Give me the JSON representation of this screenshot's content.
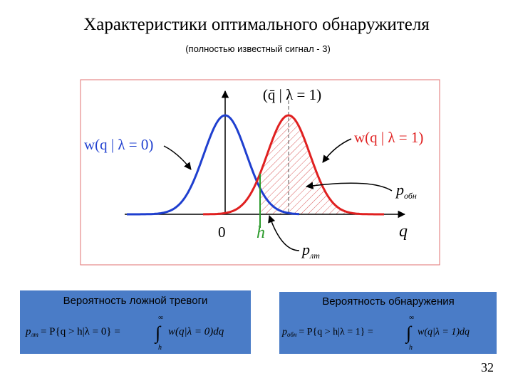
{
  "title": "Характеристики оптимального обнаружителя",
  "subtitle": "(полностью известный сигнал - 3)",
  "plot": {
    "mean_label": "(q̄ | λ = 1)",
    "curve0_label": "w(q | λ = 0)",
    "curve1_label": "w(q | λ = 1)",
    "p_det": {
      "main": "p",
      "sub": "обн"
    },
    "origin": "0",
    "threshold": "h",
    "axis": "q",
    "p_fa": {
      "main": "p",
      "sub": "лт"
    }
  },
  "boxes": [
    {
      "title": "Вероятность ложной тревоги",
      "lhs": "p",
      "sub": "лт",
      "middle": "= P{q > h|λ = 0} =",
      "upper": "∞",
      "lower": "h",
      "integrand": "w(q|λ = 0)dq"
    },
    {
      "title": "Вероятность обнаружения",
      "lhs": "p",
      "sub": "обн",
      "middle": "= P{q > h|λ = 1} =",
      "upper": "∞",
      "lower": "h",
      "integrand": "w(q|λ = 1)dq"
    }
  ],
  "page_number": "32"
}
